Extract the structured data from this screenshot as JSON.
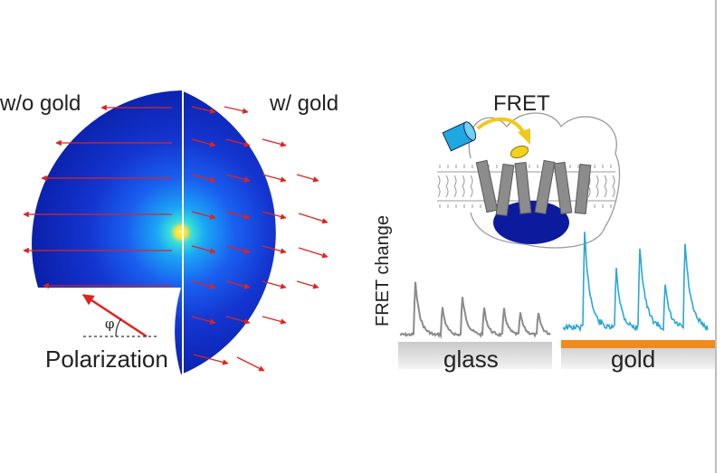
{
  "left_panel": {
    "label_without": "w/o gold",
    "label_with": "w/ gold",
    "angle_symbol": "φ",
    "polarization_label": "Polarization"
  },
  "right_panel": {
    "fret_label": "FRET",
    "y_axis_label": "FRET change",
    "glass_label": "glass",
    "gold_label": "gold"
  },
  "colors": {
    "sphere_deep": "#0a1fa8",
    "sphere_mid": "#1a6af0",
    "sphere_core": "#ffea3a",
    "arrow_red": "#e0231e",
    "trace_glass": "#8a8a8a",
    "trace_gold": "#2aa6d8",
    "gold_bar": "#f08a1c",
    "protein_blue": "#0c1a9e",
    "donor_cyan": "#1ea7e0",
    "acceptor_yellow": "#f2d21a"
  }
}
